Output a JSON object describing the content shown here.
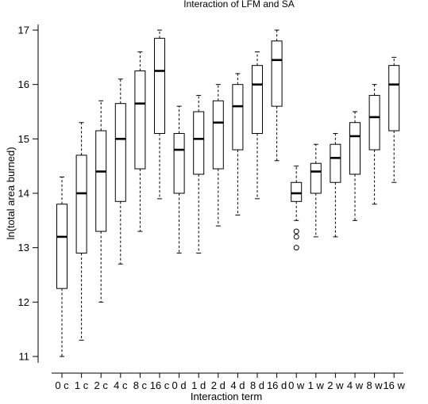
{
  "chart_data": {
    "type": "box",
    "title": "Interaction of LFM and SA",
    "xlabel": "Interaction term",
    "ylabel": "ln(total area burned)",
    "ylim": [
      10.8,
      17.15
    ],
    "yticks": [
      11,
      12,
      13,
      14,
      15,
      16,
      17
    ],
    "categories": [
      "0 c",
      "1 c",
      "2 c",
      "4 c",
      "8 c",
      "16 c",
      "0 d",
      "1 d",
      "2 d",
      "4 d",
      "8 d",
      "16 d",
      "0 w",
      "1 w",
      "2 w",
      "4 w",
      "8 w",
      "16 w"
    ],
    "boxes": [
      {
        "whisker_low": 11.0,
        "q1": 12.25,
        "median": 13.2,
        "q3": 13.8,
        "whisker_high": 14.3,
        "outliers": []
      },
      {
        "whisker_low": 11.3,
        "q1": 12.9,
        "median": 14.0,
        "q3": 14.7,
        "whisker_high": 15.3,
        "outliers": []
      },
      {
        "whisker_low": 12.0,
        "q1": 13.3,
        "median": 14.4,
        "q3": 15.15,
        "whisker_high": 15.7,
        "outliers": []
      },
      {
        "whisker_low": 12.7,
        "q1": 13.85,
        "median": 15.0,
        "q3": 15.65,
        "whisker_high": 16.1,
        "outliers": []
      },
      {
        "whisker_low": 13.3,
        "q1": 14.45,
        "median": 15.65,
        "q3": 16.25,
        "whisker_high": 16.6,
        "outliers": []
      },
      {
        "whisker_low": 13.9,
        "q1": 15.1,
        "median": 16.25,
        "q3": 16.85,
        "whisker_high": 17.0,
        "outliers": []
      },
      {
        "whisker_low": 12.9,
        "q1": 14.0,
        "median": 14.8,
        "q3": 15.1,
        "whisker_high": 15.6,
        "outliers": []
      },
      {
        "whisker_low": 12.9,
        "q1": 14.35,
        "median": 15.0,
        "q3": 15.5,
        "whisker_high": 15.8,
        "outliers": []
      },
      {
        "whisker_low": 13.4,
        "q1": 14.45,
        "median": 15.3,
        "q3": 15.7,
        "whisker_high": 16.0,
        "outliers": []
      },
      {
        "whisker_low": 13.6,
        "q1": 14.8,
        "median": 15.6,
        "q3": 16.0,
        "whisker_high": 16.2,
        "outliers": []
      },
      {
        "whisker_low": 13.9,
        "q1": 15.1,
        "median": 16.0,
        "q3": 16.35,
        "whisker_high": 16.6,
        "outliers": []
      },
      {
        "whisker_low": 14.6,
        "q1": 15.6,
        "median": 16.45,
        "q3": 16.8,
        "whisker_high": 17.0,
        "outliers": []
      },
      {
        "whisker_low": 13.5,
        "q1": 13.85,
        "median": 14.0,
        "q3": 14.2,
        "whisker_high": 14.5,
        "outliers": [
          13.3,
          13.2,
          13.0
        ]
      },
      {
        "whisker_low": 13.2,
        "q1": 14.0,
        "median": 14.4,
        "q3": 14.55,
        "whisker_high": 14.9,
        "outliers": []
      },
      {
        "whisker_low": 13.2,
        "q1": 14.2,
        "median": 14.65,
        "q3": 14.9,
        "whisker_high": 15.1,
        "outliers": []
      },
      {
        "whisker_low": 13.5,
        "q1": 14.35,
        "median": 15.05,
        "q3": 15.3,
        "whisker_high": 15.5,
        "outliers": []
      },
      {
        "whisker_low": 13.8,
        "q1": 14.8,
        "median": 15.4,
        "q3": 15.8,
        "whisker_high": 16.0,
        "outliers": []
      },
      {
        "whisker_low": 14.2,
        "q1": 15.15,
        "median": 16.0,
        "q3": 16.35,
        "whisker_high": 16.5,
        "outliers": []
      }
    ],
    "grid": false,
    "legend": "none"
  }
}
